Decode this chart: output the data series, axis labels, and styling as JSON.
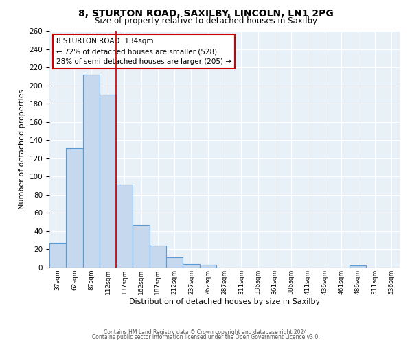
{
  "title": "8, STURTON ROAD, SAXILBY, LINCOLN, LN1 2PG",
  "subtitle": "Size of property relative to detached houses in Saxilby",
  "xlabel": "Distribution of detached houses by size in Saxilby",
  "ylabel": "Number of detached properties",
  "bar_values": [
    27,
    131,
    212,
    190,
    91,
    47,
    24,
    11,
    4,
    3,
    0,
    0,
    0,
    0,
    0,
    0,
    0,
    0,
    2,
    0,
    0
  ],
  "bin_labels": [
    "37sqm",
    "62sqm",
    "87sqm",
    "112sqm",
    "137sqm",
    "162sqm",
    "187sqm",
    "212sqm",
    "237sqm",
    "262sqm",
    "287sqm",
    "311sqm",
    "336sqm",
    "361sqm",
    "386sqm",
    "411sqm",
    "436sqm",
    "461sqm",
    "486sqm",
    "511sqm",
    "536sqm"
  ],
  "bar_color": "#c5d8ed",
  "bar_edge_color": "#5b9bd5",
  "bar_edge_width": 0.8,
  "property_line_color": "#cc0000",
  "annotation_text": "8 STURTON ROAD: 134sqm\n← 72% of detached houses are smaller (528)\n28% of semi-detached houses are larger (205) →",
  "annotation_box_color": "#ffffff",
  "annotation_box_edge": "#cc0000",
  "ylim": [
    0,
    260
  ],
  "yticks": [
    0,
    20,
    40,
    60,
    80,
    100,
    120,
    140,
    160,
    180,
    200,
    220,
    240,
    260
  ],
  "footnote1": "Contains HM Land Registry data © Crown copyright and database right 2024.",
  "footnote2": "Contains public sector information licensed under the Open Government Licence v3.0.",
  "bg_color": "#e8f0f8",
  "fig_bg_color": "#ffffff",
  "grid_color": "#ffffff",
  "num_bins": 21
}
